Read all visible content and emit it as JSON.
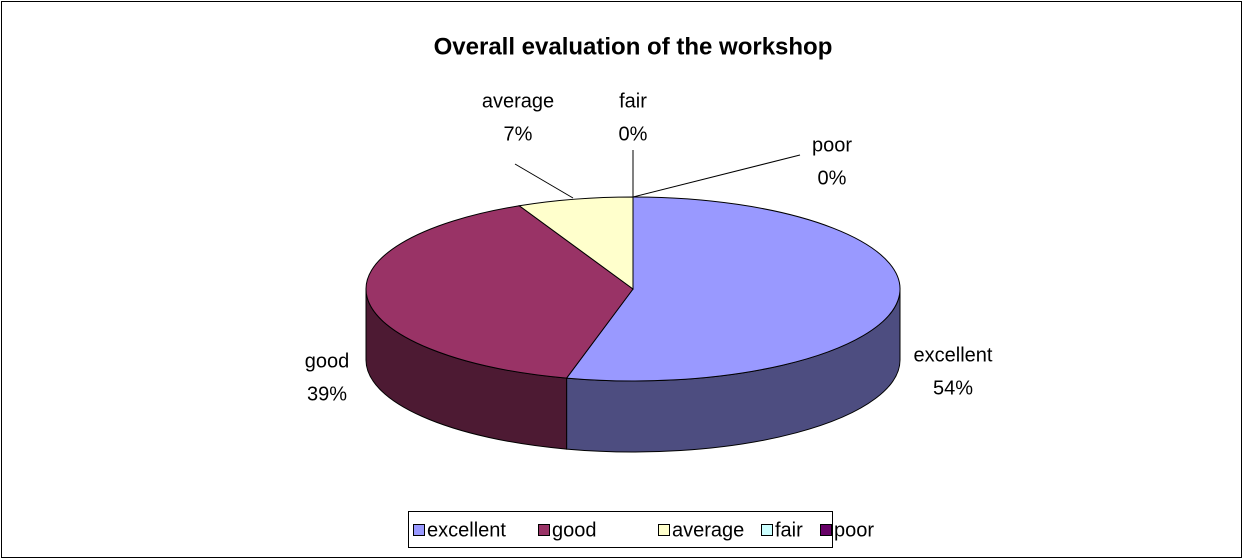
{
  "chart_data": {
    "type": "pie",
    "three_d": true,
    "title": "Overall evaluation of the workshop",
    "categories": [
      "excellent",
      "good",
      "average",
      "fair",
      "poor"
    ],
    "values": [
      54,
      39,
      7,
      0,
      0
    ],
    "value_labels": [
      "54%",
      "39%",
      "7%",
      "0%",
      "0%"
    ],
    "colors": [
      "#9999ff",
      "#993366",
      "#ffffcc",
      "#ccffff",
      "#660066"
    ],
    "legend": "bottom"
  }
}
